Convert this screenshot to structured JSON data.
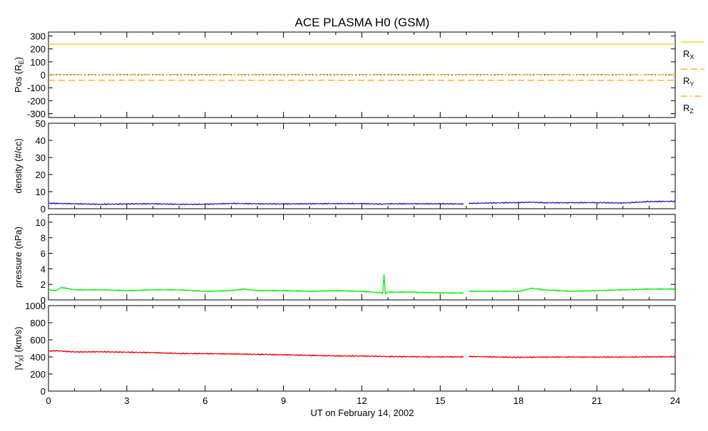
{
  "title": "ACE PLASMA H0 (GSM)",
  "xlabel": "UT on February 14, 2002",
  "chart_data": [
    {
      "id": "pos",
      "type": "line",
      "ylabel": "Pos (R",
      "ylabel_sub": "E",
      "ylabel_suffix": ")",
      "ylim": [
        -330,
        330
      ],
      "yticks": [
        300,
        200,
        100,
        0,
        -100,
        -200,
        -300
      ],
      "xlim": [
        0,
        24
      ],
      "series": [
        {
          "name": "R",
          "name_sub": "X",
          "color": "#e8d000",
          "dash": "solid",
          "x": [
            0,
            24
          ],
          "y": [
            236,
            236
          ]
        },
        {
          "name": "R",
          "name_sub": "Y",
          "color": "#ffa500",
          "dash": "dashed",
          "x": [
            0,
            24
          ],
          "y": [
            -42,
            -42
          ]
        },
        {
          "name": "R",
          "name_sub": "Z",
          "color": "#ffa500",
          "dash": "dashdot",
          "x": [
            0,
            12,
            24
          ],
          "y": [
            2,
            3,
            1
          ]
        }
      ],
      "zero_line": {
        "color": "#000000",
        "dash": "dotted",
        "y": 0
      }
    },
    {
      "id": "density",
      "type": "line",
      "ylabel": "density (#/cc)",
      "ylim": [
        0,
        50
      ],
      "yticks": [
        0,
        10,
        20,
        30,
        40,
        50
      ],
      "xlim": [
        0,
        24
      ],
      "series": [
        {
          "color": "#2020c0",
          "x": [
            0,
            1,
            2,
            3,
            4,
            5,
            6,
            7,
            8,
            9,
            10,
            11,
            12,
            12.8,
            13,
            14,
            15,
            15.9,
            16.1,
            17,
            18,
            18.5,
            19,
            20,
            21,
            22,
            23,
            24
          ],
          "y": [
            3.2,
            2.9,
            2.6,
            2.8,
            2.9,
            2.6,
            2.6,
            3.1,
            2.9,
            2.8,
            2.9,
            3.0,
            3.0,
            2.7,
            2.9,
            2.9,
            2.9,
            2.8,
            3.1,
            3.4,
            3.6,
            3.8,
            3.5,
            3.5,
            3.6,
            3.3,
            4.2,
            4.3
          ],
          "gaps": [
            [
              15.9,
              16.1
            ]
          ]
        }
      ]
    },
    {
      "id": "pressure",
      "type": "line",
      "ylabel": "pressure (nPa)",
      "ylim": [
        0,
        11
      ],
      "yticks": [
        0,
        2,
        4,
        6,
        8,
        10
      ],
      "xlim": [
        0,
        24
      ],
      "series": [
        {
          "color": "#00ee00",
          "x": [
            0,
            0.3,
            0.5,
            1,
            2,
            3,
            4,
            5,
            6,
            7,
            7.5,
            8,
            9,
            10,
            11,
            12,
            12.8,
            12.85,
            12.9,
            13,
            14,
            15,
            15.9,
            16.1,
            17,
            18,
            18.5,
            19,
            20,
            21,
            22,
            23,
            24
          ],
          "y": [
            1.3,
            1.2,
            1.6,
            1.3,
            1.3,
            1.2,
            1.3,
            1.3,
            1.1,
            1.2,
            1.4,
            1.2,
            1.2,
            1.1,
            1.2,
            1.1,
            0.9,
            3.3,
            0.8,
            1.0,
            1.0,
            0.9,
            0.9,
            1.1,
            1.1,
            1.1,
            1.5,
            1.3,
            1.1,
            1.2,
            1.3,
            1.4,
            1.4
          ],
          "gaps": [
            [
              15.9,
              16.1
            ]
          ]
        }
      ]
    },
    {
      "id": "vx",
      "type": "line",
      "ylabel": "|V",
      "ylabel_sub": "X",
      "ylabel_suffix": "| (km/s)",
      "ylim": [
        0,
        1000
      ],
      "yticks": [
        0,
        200,
        400,
        600,
        800,
        1000
      ],
      "xlim": [
        0,
        24
      ],
      "xticks": [
        0,
        3,
        6,
        9,
        12,
        15,
        18,
        21,
        24
      ],
      "series": [
        {
          "color": "#ee0000",
          "x": [
            0,
            0.3,
            1,
            2,
            3,
            4,
            5,
            6,
            7,
            8,
            9,
            10,
            11,
            12,
            13,
            14,
            15,
            15.9,
            16.1,
            17,
            18,
            19,
            20,
            21,
            22,
            23,
            24
          ],
          "y": [
            468,
            472,
            458,
            460,
            455,
            450,
            440,
            438,
            435,
            430,
            425,
            418,
            412,
            410,
            405,
            402,
            400,
            400,
            405,
            400,
            395,
            398,
            398,
            398,
            398,
            400,
            402
          ],
          "gaps": [
            [
              15.9,
              16.1
            ]
          ]
        }
      ]
    }
  ]
}
